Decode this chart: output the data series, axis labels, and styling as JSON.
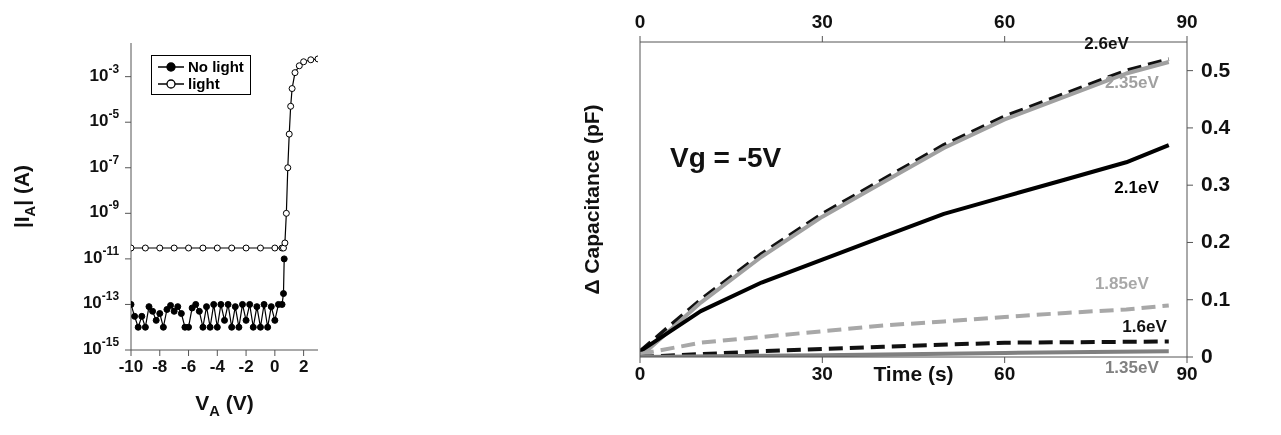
{
  "chart_data": [
    {
      "type": "line",
      "xlabel": "V$_{A}$ (V)",
      "ylabel": "|I$_{A}$| (A)",
      "log": "y",
      "marker": "circle",
      "legend": "top left",
      "xlim": [
        -10,
        3
      ],
      "xticks": [
        -10,
        -8,
        -6,
        -4,
        -2,
        0,
        2
      ],
      "ylim": [
        1e-15,
        0.03
      ],
      "yticks": [
        {
          "value": 1e-15,
          "label": "10$^{-15}$"
        },
        {
          "value": 1e-13,
          "label": "10$^{-13}$"
        },
        {
          "value": 1e-11,
          "label": "10$^{-11}$"
        },
        {
          "value": 1e-09,
          "label": "10$^{-9}$"
        },
        {
          "value": 1e-07,
          "label": "10$^{-7}$"
        },
        {
          "value": 1e-05,
          "label": "10$^{-5}$"
        },
        {
          "value": 0.001,
          "label": "10$^{-3}$"
        }
      ],
      "series": [
        {
          "name": "No light",
          "color": "#000000",
          "x": [
            -10,
            -9.75,
            -9.5,
            -9.25,
            -9,
            -8.75,
            -8.5,
            -8.25,
            -8,
            -7.75,
            -7.5,
            -7.25,
            -7,
            -6.75,
            -6.5,
            -6.25,
            -6,
            -5.75,
            -5.5,
            -5.25,
            -5,
            -4.75,
            -4.5,
            -4.25,
            -4,
            -3.75,
            -3.5,
            -3.25,
            -3,
            -2.75,
            -2.5,
            -2.25,
            -2,
            -1.75,
            -1.5,
            -1.25,
            -1,
            -0.75,
            -0.5,
            -0.25,
            0,
            0.25,
            0.5,
            0.6,
            0.65
          ],
          "values": [
            1e-13,
            3e-14,
            1e-14,
            3e-14,
            1e-14,
            8e-14,
            5e-14,
            2e-14,
            4e-14,
            1e-14,
            6e-14,
            9e-14,
            5e-14,
            8e-14,
            4e-14,
            1e-14,
            1e-14,
            7e-14,
            1e-13,
            5e-14,
            1e-14,
            8e-14,
            1e-14,
            1e-13,
            1e-14,
            1e-13,
            2e-14,
            1e-13,
            1e-14,
            8e-14,
            1e-14,
            1e-13,
            2e-14,
            1e-13,
            1e-14,
            8e-14,
            1e-14,
            1e-13,
            1e-14,
            8e-14,
            2e-14,
            1e-13,
            1e-13,
            3e-13,
            1e-11
          ]
        },
        {
          "name": "light",
          "color": "#000000",
          "x": [
            -10,
            -9,
            -8,
            -7,
            -6,
            -5,
            -4,
            -3,
            -2,
            -1,
            0,
            0.5,
            0.6,
            0.7,
            0.8,
            0.9,
            1,
            1.1,
            1.2,
            1.4,
            1.7,
            2,
            2.5,
            3
          ],
          "values": [
            3e-11,
            3e-11,
            3e-11,
            3e-11,
            3e-11,
            3e-11,
            3e-11,
            3e-11,
            3e-11,
            3e-11,
            3e-11,
            3e-11,
            3e-11,
            5e-11,
            1e-09,
            1e-07,
            3e-06,
            5e-05,
            0.0003,
            0.0015,
            0.003,
            0.0045,
            0.0055,
            0.006
          ]
        }
      ]
    },
    {
      "type": "line",
      "xlabel": "Time (s)",
      "ylabel": "Δ Capacitance (pF)",
      "marker": "none",
      "annotations": [
        "Vg = -5V"
      ],
      "xlim": [
        0,
        90
      ],
      "xticks": [
        0,
        30,
        60,
        90
      ],
      "x2lim": [
        0,
        90
      ],
      "x2ticks": [
        0,
        30,
        60,
        90
      ],
      "ylim": [
        0,
        0.55
      ],
      "yticks": [
        0,
        0.1,
        0.2,
        0.3,
        0.4,
        0.5
      ],
      "series": [
        {
          "name": "2.6eV",
          "color": "#111111",
          "line_style": "dashed",
          "x": [
            0,
            10,
            20,
            30,
            40,
            50,
            60,
            70,
            80,
            87
          ],
          "values": [
            0.01,
            0.1,
            0.18,
            0.25,
            0.31,
            0.37,
            0.42,
            0.46,
            0.5,
            0.52
          ]
        },
        {
          "name": "2.35eV",
          "color": "#a0a0a0",
          "line_style": "solid",
          "x": [
            0,
            10,
            20,
            30,
            40,
            50,
            60,
            70,
            80,
            87
          ],
          "values": [
            0,
            0.095,
            0.175,
            0.245,
            0.305,
            0.365,
            0.415,
            0.455,
            0.495,
            0.515
          ]
        },
        {
          "name": "2.1eV",
          "color": "#000000",
          "line_style": "solid",
          "x": [
            0,
            10,
            20,
            30,
            40,
            50,
            60,
            70,
            80,
            87
          ],
          "values": [
            0.01,
            0.08,
            0.13,
            0.17,
            0.21,
            0.25,
            0.28,
            0.31,
            0.34,
            0.37
          ]
        },
        {
          "name": "1.85eV",
          "color": "#a8a8a8",
          "line_style": "dashed",
          "x": [
            0,
            10,
            20,
            30,
            40,
            50,
            60,
            70,
            80,
            87
          ],
          "values": [
            0.005,
            0.025,
            0.035,
            0.045,
            0.055,
            0.062,
            0.07,
            0.077,
            0.083,
            0.09
          ]
        },
        {
          "name": "1.6eV",
          "color": "#111111",
          "line_style": "dashed",
          "x": [
            0,
            20,
            40,
            60,
            87
          ],
          "values": [
            0,
            0.01,
            0.018,
            0.025,
            0.027
          ]
        },
        {
          "name": "1.35eV",
          "color": "#808080",
          "line_style": "solid",
          "x": [
            0,
            30,
            60,
            87
          ],
          "values": [
            0,
            0.003,
            0.007,
            0.01
          ]
        }
      ]
    }
  ]
}
